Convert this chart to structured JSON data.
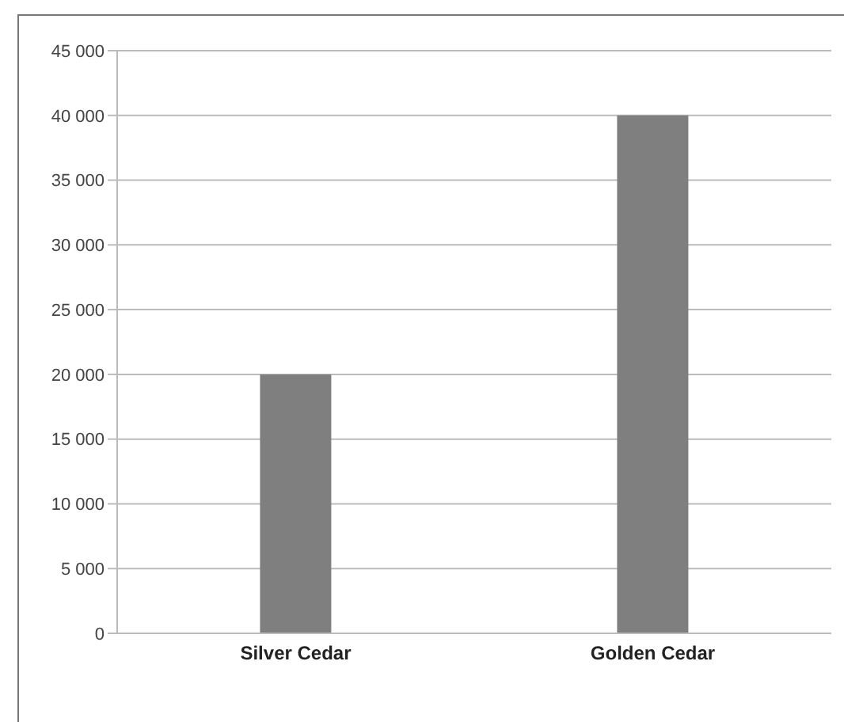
{
  "chart_data": {
    "type": "bar",
    "categories": [
      "Silver Cedar",
      "Golden Cedar"
    ],
    "values": [
      20000,
      40000
    ],
    "color": "#7f7f7f",
    "ylim": [
      0,
      45000
    ],
    "yticks": [
      {
        "value": 0,
        "label": "0"
      },
      {
        "value": 5000,
        "label": "5 000"
      },
      {
        "value": 10000,
        "label": "10 000"
      },
      {
        "value": 15000,
        "label": "15 000"
      },
      {
        "value": 20000,
        "label": "20 000"
      },
      {
        "value": 25000,
        "label": "25 000"
      },
      {
        "value": 30000,
        "label": "30 000"
      },
      {
        "value": 35000,
        "label": "35 000"
      },
      {
        "value": 40000,
        "label": "40 000"
      },
      {
        "value": 45000,
        "label": "45 000"
      }
    ],
    "grid": "y"
  }
}
